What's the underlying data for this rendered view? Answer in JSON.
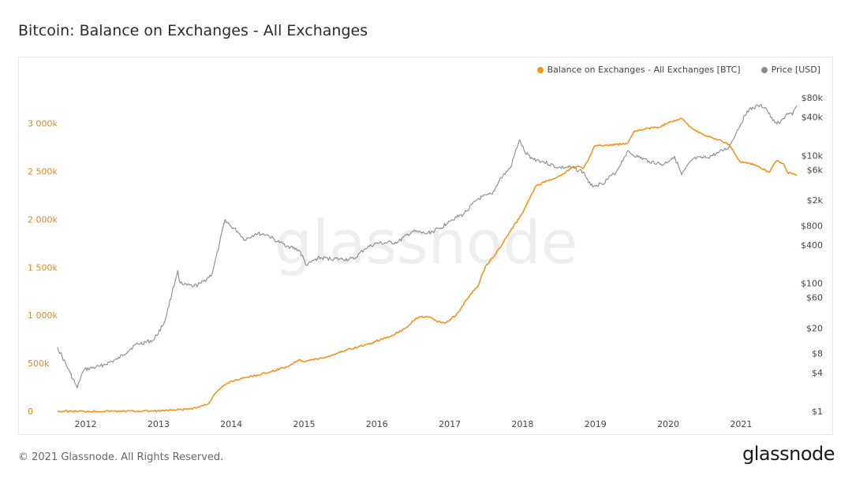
{
  "title": "Bitcoin: Balance on Exchanges - All Exchanges",
  "footer": {
    "copyright": "© 2021 Glassnode. All Rights Reserved.",
    "logo": "glassnode"
  },
  "watermark": "glassnode",
  "colors": {
    "balance": "#f7931a",
    "price": "#8a8a8a",
    "left_axis_text": "#d9892a",
    "axis_text": "#444444"
  },
  "chart_data": {
    "type": "line",
    "title": "Bitcoin: Balance on Exchanges - All Exchanges",
    "legend_position": "top-right",
    "grid": false,
    "x_ticks": [
      "2012",
      "2013",
      "2014",
      "2015",
      "2016",
      "2017",
      "2018",
      "2019",
      "2020",
      "2021"
    ],
    "x_range": [
      2011.63,
      2021.78
    ],
    "y_left": {
      "unit": "BTC",
      "ylim": [
        0,
        3300000
      ],
      "ticks": [
        0,
        500000,
        1000000,
        1500000,
        2000000,
        2500000,
        3000000
      ],
      "tick_labels": [
        "0",
        "500k",
        "1 000k",
        "1 500k",
        "2 000k",
        "2 500k",
        "3 000k"
      ]
    },
    "y_right": {
      "unit": "USD",
      "scale": "log",
      "ylim": [
        1,
        90000
      ],
      "ticks": [
        1,
        4,
        8,
        20,
        60,
        100,
        400,
        800,
        2000,
        6000,
        10000,
        40000,
        80000
      ],
      "tick_labels": [
        "$1",
        "$4",
        "$8",
        "$20",
        "$60",
        "$100",
        "$400",
        "$800",
        "$2k",
        "$6k",
        "$10k",
        "$40k",
        "$80k"
      ]
    },
    "series": [
      {
        "name": "Balance on Exchanges - All Exchanges [BTC]",
        "axis": "left",
        "points": [
          [
            2011.63,
            0
          ],
          [
            2012.0,
            0
          ],
          [
            2012.5,
            1000
          ],
          [
            2013.0,
            3000
          ],
          [
            2013.2,
            10000
          ],
          [
            2013.4,
            20000
          ],
          [
            2013.55,
            40000
          ],
          [
            2013.7,
            80000
          ],
          [
            2013.8,
            190000
          ],
          [
            2013.9,
            260000
          ],
          [
            2014.0,
            310000
          ],
          [
            2014.2,
            350000
          ],
          [
            2014.5,
            400000
          ],
          [
            2014.8,
            470000
          ],
          [
            2014.95,
            540000
          ],
          [
            2015.0,
            520000
          ],
          [
            2015.3,
            560000
          ],
          [
            2015.6,
            640000
          ],
          [
            2015.9,
            700000
          ],
          [
            2016.0,
            730000
          ],
          [
            2016.2,
            780000
          ],
          [
            2016.4,
            860000
          ],
          [
            2016.55,
            970000
          ],
          [
            2016.7,
            990000
          ],
          [
            2016.9,
            920000
          ],
          [
            2016.95,
            920000
          ],
          [
            2017.1,
            1000000
          ],
          [
            2017.3,
            1220000
          ],
          [
            2017.4,
            1300000
          ],
          [
            2017.5,
            1500000
          ],
          [
            2017.7,
            1700000
          ],
          [
            2017.85,
            1880000
          ],
          [
            2018.0,
            2050000
          ],
          [
            2018.12,
            2230000
          ],
          [
            2018.2,
            2350000
          ],
          [
            2018.35,
            2400000
          ],
          [
            2018.55,
            2460000
          ],
          [
            2018.7,
            2540000
          ],
          [
            2018.8,
            2550000
          ],
          [
            2018.85,
            2530000
          ],
          [
            2018.95,
            2670000
          ],
          [
            2019.0,
            2760000
          ],
          [
            2019.3,
            2780000
          ],
          [
            2019.45,
            2790000
          ],
          [
            2019.55,
            2920000
          ],
          [
            2019.75,
            2950000
          ],
          [
            2019.9,
            2960000
          ],
          [
            2020.0,
            3000000
          ],
          [
            2020.2,
            3050000
          ],
          [
            2020.3,
            2970000
          ],
          [
            2020.5,
            2880000
          ],
          [
            2020.7,
            2830000
          ],
          [
            2020.85,
            2780000
          ],
          [
            2021.0,
            2600000
          ],
          [
            2021.2,
            2570000
          ],
          [
            2021.4,
            2490000
          ],
          [
            2021.5,
            2610000
          ],
          [
            2021.6,
            2580000
          ],
          [
            2021.65,
            2490000
          ],
          [
            2021.78,
            2460000
          ]
        ]
      },
      {
        "name": "Price [USD]",
        "axis": "right",
        "points": [
          [
            2011.63,
            10
          ],
          [
            2011.8,
            4
          ],
          [
            2011.9,
            2.3
          ],
          [
            2011.95,
            3.5
          ],
          [
            2012.0,
            4.5
          ],
          [
            2012.2,
            5
          ],
          [
            2012.45,
            6.5
          ],
          [
            2012.7,
            11
          ],
          [
            2012.95,
            13
          ],
          [
            2013.1,
            25
          ],
          [
            2013.2,
            70
          ],
          [
            2013.28,
            160
          ],
          [
            2013.3,
            110
          ],
          [
            2013.35,
            95
          ],
          [
            2013.5,
            90
          ],
          [
            2013.6,
            100
          ],
          [
            2013.75,
            140
          ],
          [
            2013.85,
            400
          ],
          [
            2013.93,
            1000
          ],
          [
            2014.0,
            800
          ],
          [
            2014.1,
            650
          ],
          [
            2014.2,
            480
          ],
          [
            2014.35,
            600
          ],
          [
            2014.5,
            580
          ],
          [
            2014.65,
            450
          ],
          [
            2014.8,
            380
          ],
          [
            2014.95,
            330
          ],
          [
            2015.05,
            190
          ],
          [
            2015.2,
            250
          ],
          [
            2015.5,
            240
          ],
          [
            2015.7,
            240
          ],
          [
            2015.85,
            350
          ],
          [
            2016.0,
            420
          ],
          [
            2016.3,
            440
          ],
          [
            2016.5,
            650
          ],
          [
            2016.7,
            600
          ],
          [
            2016.9,
            740
          ],
          [
            2017.0,
            950
          ],
          [
            2017.2,
            1200
          ],
          [
            2017.4,
            2100
          ],
          [
            2017.6,
            2500
          ],
          [
            2017.7,
            4200
          ],
          [
            2017.85,
            6500
          ],
          [
            2017.97,
            17500
          ],
          [
            2018.05,
            11000
          ],
          [
            2018.15,
            9000
          ],
          [
            2018.3,
            8000
          ],
          [
            2018.5,
            6500
          ],
          [
            2018.7,
            6500
          ],
          [
            2018.85,
            5500
          ],
          [
            2018.95,
            3400
          ],
          [
            2019.1,
            3600
          ],
          [
            2019.3,
            5500
          ],
          [
            2019.45,
            11500
          ],
          [
            2019.6,
            9500
          ],
          [
            2019.75,
            8200
          ],
          [
            2019.95,
            7200
          ],
          [
            2020.1,
            9800
          ],
          [
            2020.2,
            5000
          ],
          [
            2020.35,
            8800
          ],
          [
            2020.55,
            9300
          ],
          [
            2020.7,
            11000
          ],
          [
            2020.85,
            13500
          ],
          [
            2020.95,
            23000
          ],
          [
            2021.1,
            50000
          ],
          [
            2021.25,
            60000
          ],
          [
            2021.35,
            57000
          ],
          [
            2021.45,
            35000
          ],
          [
            2021.55,
            32000
          ],
          [
            2021.65,
            46000
          ],
          [
            2021.72,
            43000
          ],
          [
            2021.78,
            60000
          ]
        ]
      }
    ]
  }
}
